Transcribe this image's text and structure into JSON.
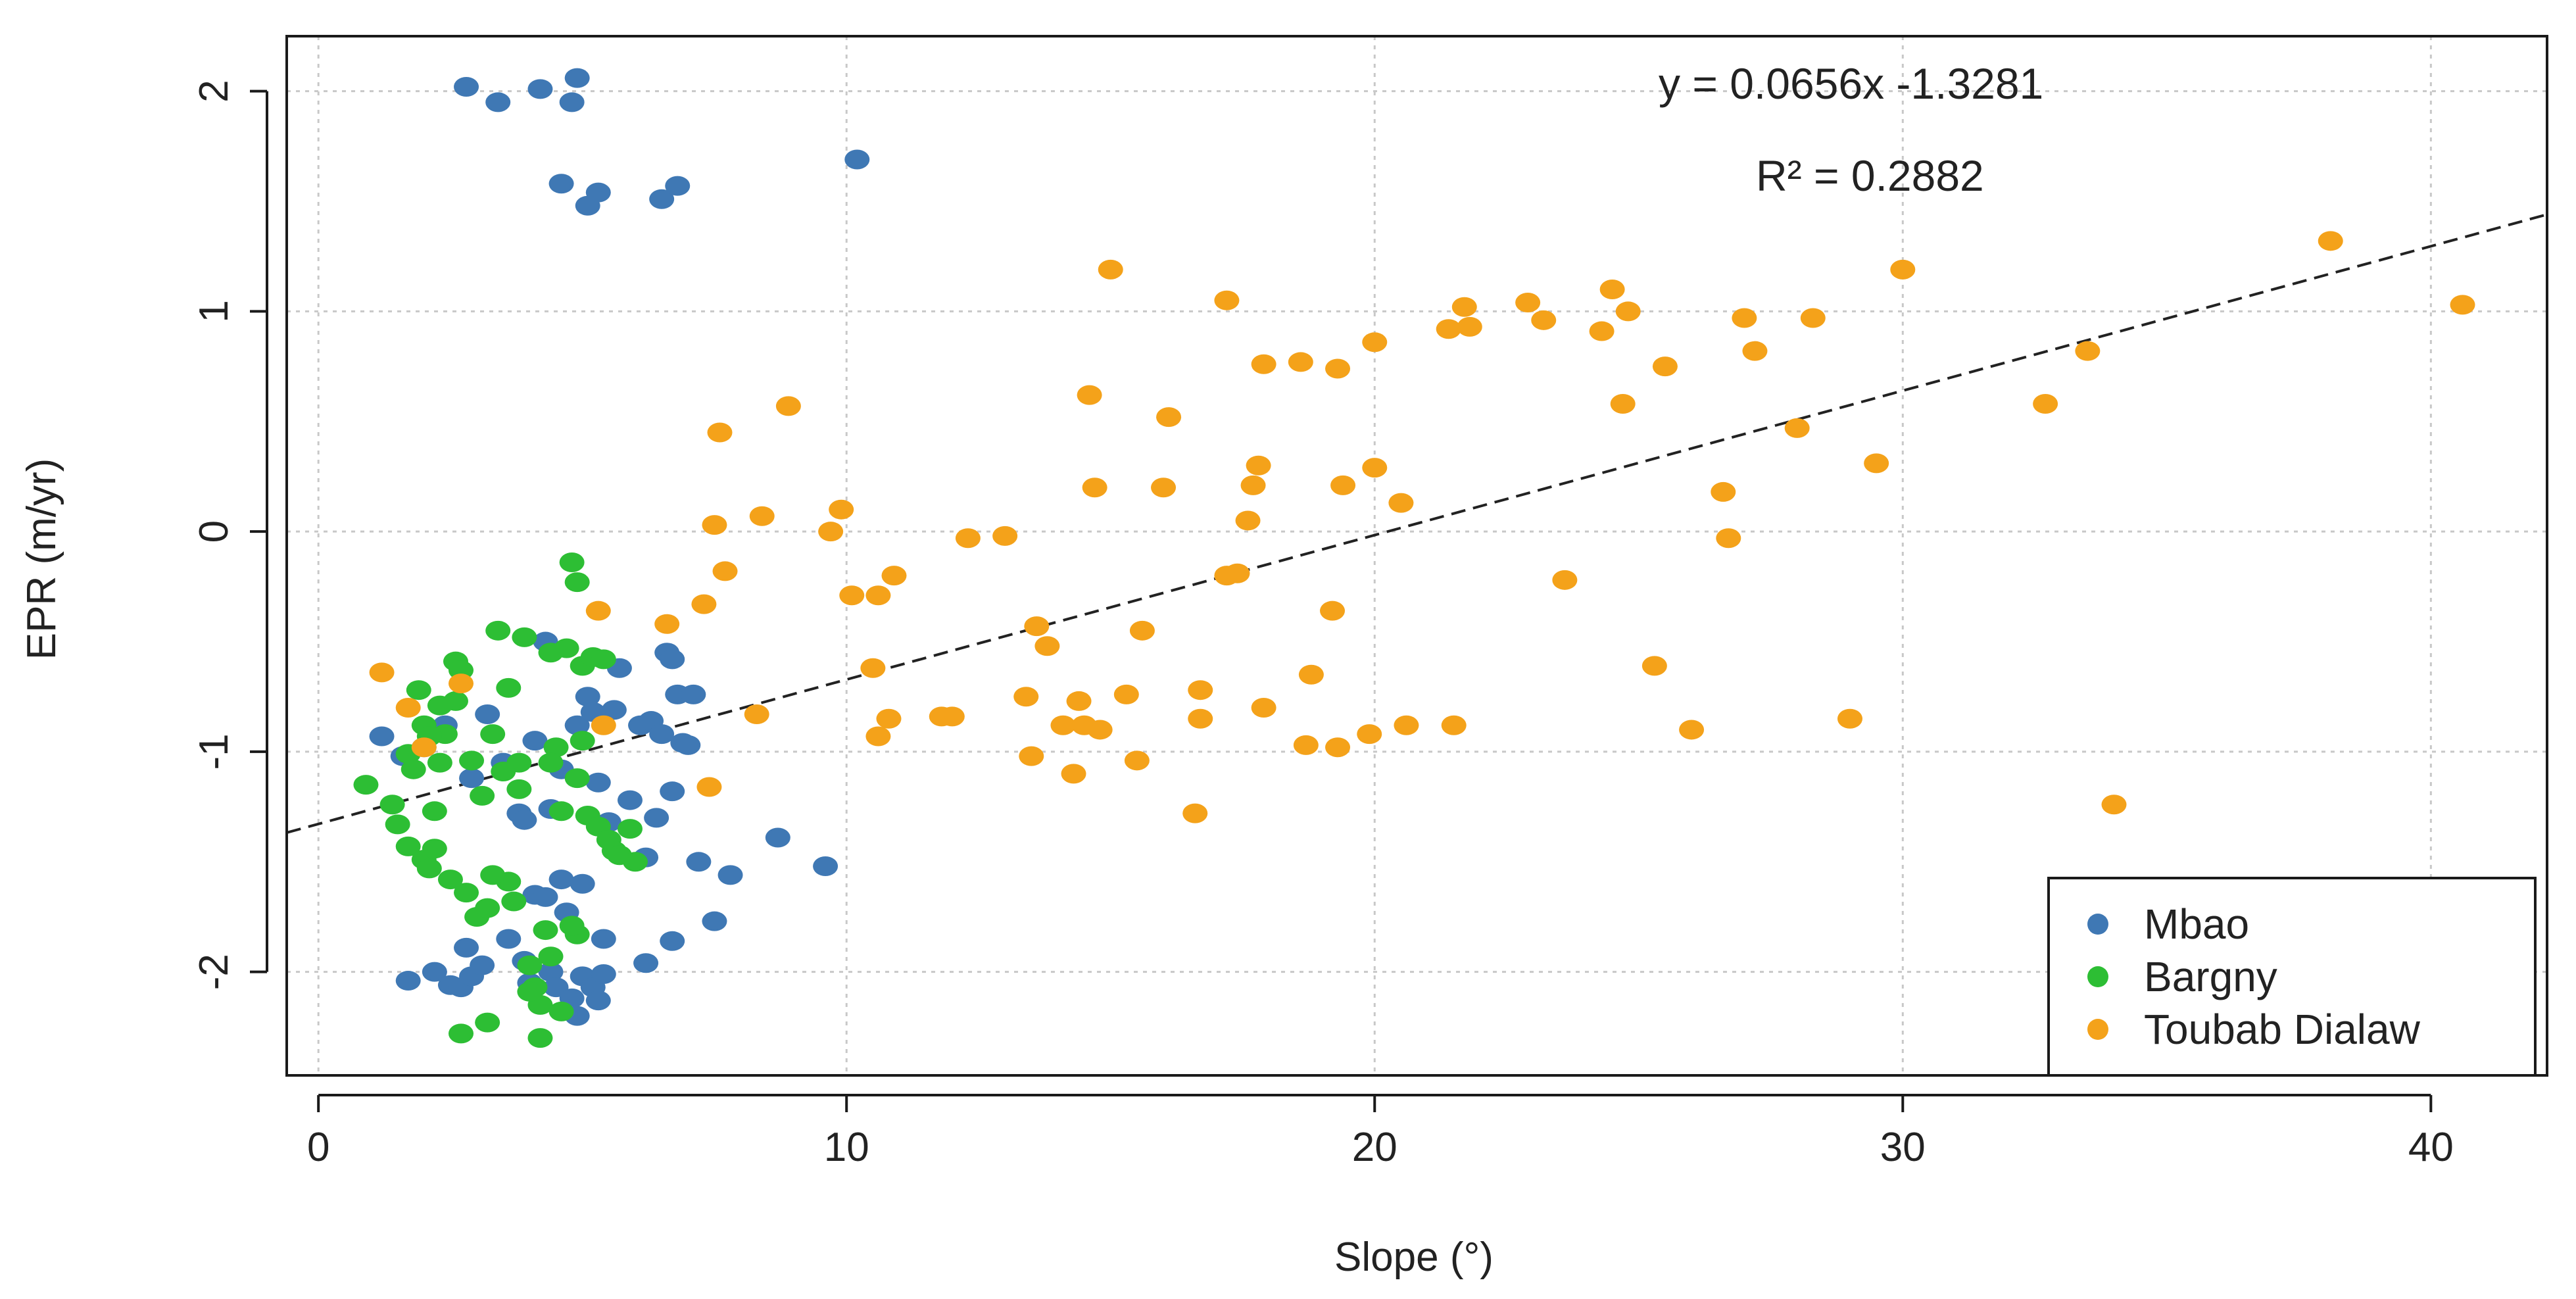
{
  "chart_data": {
    "type": "scatter",
    "title": "",
    "xlabel": "Slope (°)",
    "ylabel": "EPR (m/yr)",
    "xlim": [
      -0.6,
      42.2
    ],
    "ylim": [
      -2.47,
      2.25
    ],
    "xticks": [
      0,
      10,
      20,
      30,
      40
    ],
    "xtick_labels": [
      "0",
      "10",
      "20",
      "30",
      "40"
    ],
    "yticks": [
      -2,
      -1,
      0,
      1,
      2
    ],
    "ytick_labels": [
      "-2",
      "-1",
      "0",
      "1",
      "2"
    ],
    "grid": true,
    "legend_position": "bottom-right",
    "equation_text": "y = 0.0656x -1.3281",
    "r2_text": "R² = 0.2882",
    "trendline": {
      "slope": 0.0656,
      "intercept": -1.3281,
      "style": "dashed"
    },
    "series": [
      {
        "name": "Mbao",
        "color": "#3f78b4",
        "points": [
          [
            2.8,
            2.02
          ],
          [
            3.4,
            1.95
          ],
          [
            4.2,
            2.01
          ],
          [
            4.8,
            1.95
          ],
          [
            4.9,
            2.06
          ],
          [
            4.6,
            1.58
          ],
          [
            5.1,
            1.48
          ],
          [
            5.3,
            1.54
          ],
          [
            6.5,
            1.51
          ],
          [
            6.8,
            1.57
          ],
          [
            10.2,
            1.69
          ],
          [
            1.2,
            -0.93
          ],
          [
            1.6,
            -1.02
          ],
          [
            2.0,
            -0.98
          ],
          [
            2.4,
            -0.88
          ],
          [
            2.9,
            -1.12
          ],
          [
            3.2,
            -0.83
          ],
          [
            3.5,
            -1.05
          ],
          [
            3.8,
            -1.28
          ],
          [
            4.1,
            -0.95
          ],
          [
            4.3,
            -0.5
          ],
          [
            4.6,
            -1.08
          ],
          [
            4.9,
            -0.88
          ],
          [
            5.1,
            -0.75
          ],
          [
            5.3,
            -1.14
          ],
          [
            5.6,
            -0.81
          ],
          [
            5.7,
            -0.62
          ],
          [
            5.9,
            -1.22
          ],
          [
            6.1,
            -0.88
          ],
          [
            6.3,
            -0.86
          ],
          [
            6.4,
            -1.3
          ],
          [
            6.5,
            -0.92
          ],
          [
            6.6,
            -0.55
          ],
          [
            6.7,
            -0.58
          ],
          [
            6.7,
            -1.18
          ],
          [
            6.8,
            -0.74
          ],
          [
            6.9,
            -0.96
          ],
          [
            7.0,
            -0.97
          ],
          [
            7.1,
            -0.74
          ],
          [
            5.2,
            -0.82
          ],
          [
            5.5,
            -1.32
          ],
          [
            4.4,
            -1.26
          ],
          [
            3.9,
            -1.31
          ],
          [
            6.2,
            -1.48
          ],
          [
            7.2,
            -1.5
          ],
          [
            7.8,
            -1.56
          ],
          [
            8.7,
            -1.39
          ],
          [
            9.6,
            -1.52
          ],
          [
            4.1,
            -1.65
          ],
          [
            4.6,
            -1.58
          ],
          [
            4.7,
            -1.73
          ],
          [
            5.0,
            -1.6
          ],
          [
            5.4,
            -1.85
          ],
          [
            7.5,
            -1.77
          ],
          [
            6.7,
            -1.86
          ],
          [
            6.2,
            -1.96
          ],
          [
            4.3,
            -1.66
          ],
          [
            3.6,
            -1.85
          ],
          [
            2.8,
            -1.89
          ],
          [
            1.7,
            -2.04
          ],
          [
            2.2,
            -2.0
          ],
          [
            2.5,
            -2.06
          ],
          [
            2.7,
            -2.07
          ],
          [
            2.9,
            -2.02
          ],
          [
            3.1,
            -1.97
          ],
          [
            3.9,
            -1.95
          ],
          [
            4.0,
            -2.05
          ],
          [
            4.4,
            -2.0
          ],
          [
            4.5,
            -2.07
          ],
          [
            4.8,
            -2.12
          ],
          [
            4.9,
            -2.2
          ],
          [
            5.0,
            -2.02
          ],
          [
            5.2,
            -2.07
          ],
          [
            5.3,
            -2.13
          ],
          [
            5.4,
            -2.01
          ]
        ]
      },
      {
        "name": "Bargny",
        "color": "#2dbe34",
        "points": [
          [
            0.9,
            -1.15
          ],
          [
            1.4,
            -1.24
          ],
          [
            1.5,
            -1.33
          ],
          [
            1.7,
            -1.43
          ],
          [
            1.7,
            -1.01
          ],
          [
            1.9,
            -0.72
          ],
          [
            2.0,
            -0.88
          ],
          [
            2.0,
            -1.49
          ],
          [
            2.1,
            -1.53
          ],
          [
            2.2,
            -1.44
          ],
          [
            2.3,
            -0.79
          ],
          [
            2.3,
            -1.05
          ],
          [
            2.4,
            -0.92
          ],
          [
            2.5,
            -1.58
          ],
          [
            2.6,
            -0.59
          ],
          [
            2.7,
            -0.63
          ],
          [
            2.8,
            -1.64
          ],
          [
            2.9,
            -1.04
          ],
          [
            3.0,
            -1.75
          ],
          [
            3.1,
            -1.2
          ],
          [
            3.2,
            -1.71
          ],
          [
            3.3,
            -0.92
          ],
          [
            3.4,
            -0.45
          ],
          [
            3.5,
            -1.09
          ],
          [
            3.6,
            -1.59
          ],
          [
            3.6,
            -0.71
          ],
          [
            3.7,
            -1.68
          ],
          [
            3.8,
            -1.05
          ],
          [
            3.9,
            -0.48
          ],
          [
            4.0,
            -1.97
          ],
          [
            4.1,
            -2.07
          ],
          [
            4.2,
            -2.15
          ],
          [
            4.3,
            -1.81
          ],
          [
            4.4,
            -0.55
          ],
          [
            4.5,
            -0.98
          ],
          [
            4.6,
            -1.27
          ],
          [
            4.7,
            -0.53
          ],
          [
            4.8,
            -0.14
          ],
          [
            4.9,
            -1.12
          ],
          [
            5.0,
            -0.61
          ],
          [
            5.1,
            -1.29
          ],
          [
            5.2,
            -0.57
          ],
          [
            5.3,
            -1.34
          ],
          [
            5.4,
            -0.58
          ],
          [
            5.5,
            -1.4
          ],
          [
            5.6,
            -1.45
          ],
          [
            5.7,
            -1.47
          ],
          [
            5.9,
            -1.35
          ],
          [
            6.0,
            -1.5
          ],
          [
            4.9,
            -0.23
          ],
          [
            4.2,
            -2.3
          ],
          [
            2.7,
            -2.28
          ],
          [
            3.2,
            -2.23
          ],
          [
            4.6,
            -2.18
          ],
          [
            4.0,
            -2.09
          ],
          [
            4.9,
            -1.83
          ],
          [
            4.8,
            -1.79
          ],
          [
            4.4,
            -1.93
          ],
          [
            2.1,
            -0.93
          ],
          [
            1.8,
            -1.08
          ],
          [
            3.3,
            -1.56
          ],
          [
            2.6,
            -0.77
          ],
          [
            3.8,
            -1.17
          ],
          [
            4.4,
            -1.05
          ],
          [
            5.0,
            -0.95
          ],
          [
            2.2,
            -1.27
          ]
        ]
      },
      {
        "name": "Toubab Dialaw",
        "color": "#f4a21a",
        "points": [
          [
            1.2,
            -0.64
          ],
          [
            1.7,
            -0.8
          ],
          [
            2.0,
            -0.98
          ],
          [
            2.7,
            -0.69
          ],
          [
            5.3,
            -0.36
          ],
          [
            5.4,
            -0.88
          ],
          [
            6.6,
            -0.42
          ],
          [
            7.3,
            -0.33
          ],
          [
            7.4,
            -1.16
          ],
          [
            7.5,
            0.03
          ],
          [
            7.6,
            0.45
          ],
          [
            7.7,
            -0.18
          ],
          [
            8.3,
            -0.83
          ],
          [
            8.4,
            0.07
          ],
          [
            8.9,
            0.57
          ],
          [
            9.7,
            0.0
          ],
          [
            9.9,
            0.1
          ],
          [
            10.1,
            -0.29
          ],
          [
            10.5,
            -0.62
          ],
          [
            10.6,
            -0.93
          ],
          [
            10.6,
            -0.29
          ],
          [
            10.8,
            -0.85
          ],
          [
            10.9,
            -0.2
          ],
          [
            11.8,
            -0.84
          ],
          [
            12.0,
            -0.84
          ],
          [
            12.3,
            -0.03
          ],
          [
            13.0,
            -0.02
          ],
          [
            13.4,
            -0.75
          ],
          [
            13.5,
            -1.02
          ],
          [
            13.6,
            -0.43
          ],
          [
            13.8,
            -0.52
          ],
          [
            14.1,
            -0.88
          ],
          [
            14.3,
            -1.1
          ],
          [
            14.4,
            -0.77
          ],
          [
            14.5,
            -0.88
          ],
          [
            14.6,
            0.62
          ],
          [
            14.7,
            0.2
          ],
          [
            14.8,
            -0.9
          ],
          [
            15.0,
            1.19
          ],
          [
            15.3,
            -0.74
          ],
          [
            15.5,
            -1.04
          ],
          [
            15.6,
            -0.45
          ],
          [
            16.0,
            0.2
          ],
          [
            16.1,
            0.52
          ],
          [
            16.6,
            -1.28
          ],
          [
            16.7,
            -0.85
          ],
          [
            16.7,
            -0.72
          ],
          [
            17.2,
            -0.2
          ],
          [
            17.2,
            1.05
          ],
          [
            17.4,
            -0.19
          ],
          [
            17.6,
            0.05
          ],
          [
            17.7,
            0.21
          ],
          [
            17.8,
            0.3
          ],
          [
            17.9,
            0.76
          ],
          [
            17.9,
            -0.8
          ],
          [
            18.6,
            0.77
          ],
          [
            18.7,
            -0.97
          ],
          [
            18.8,
            -0.65
          ],
          [
            19.2,
            -0.36
          ],
          [
            19.3,
            0.74
          ],
          [
            19.3,
            -0.98
          ],
          [
            19.4,
            0.21
          ],
          [
            19.9,
            -0.92
          ],
          [
            20.0,
            0.29
          ],
          [
            20.0,
            0.86
          ],
          [
            20.5,
            0.13
          ],
          [
            20.6,
            -0.88
          ],
          [
            21.4,
            0.92
          ],
          [
            21.5,
            -0.88
          ],
          [
            21.7,
            1.02
          ],
          [
            21.8,
            0.93
          ],
          [
            22.9,
            1.04
          ],
          [
            23.2,
            0.96
          ],
          [
            23.6,
            -0.22
          ],
          [
            24.3,
            0.91
          ],
          [
            24.5,
            1.1
          ],
          [
            24.7,
            0.58
          ],
          [
            24.8,
            1.0
          ],
          [
            25.3,
            -0.61
          ],
          [
            25.5,
            0.75
          ],
          [
            26.0,
            -0.9
          ],
          [
            26.6,
            0.18
          ],
          [
            26.7,
            -0.03
          ],
          [
            27.0,
            0.97
          ],
          [
            27.2,
            0.82
          ],
          [
            28.0,
            0.47
          ],
          [
            28.3,
            0.97
          ],
          [
            29.0,
            -0.85
          ],
          [
            29.5,
            0.31
          ],
          [
            30.0,
            1.19
          ],
          [
            32.7,
            0.58
          ],
          [
            33.5,
            0.82
          ],
          [
            34.0,
            -1.24
          ],
          [
            38.1,
            1.32
          ],
          [
            40.6,
            1.03
          ]
        ]
      }
    ]
  }
}
